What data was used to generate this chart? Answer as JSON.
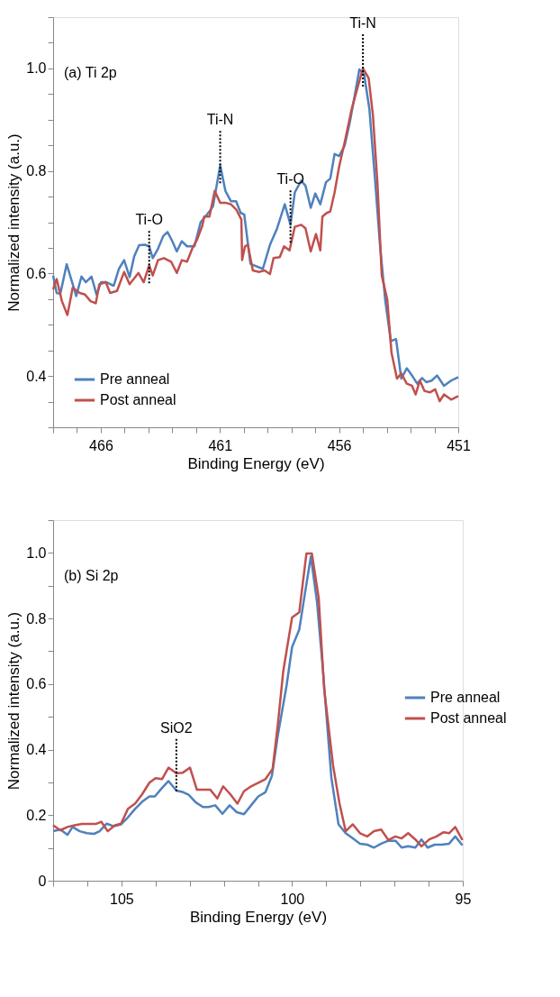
{
  "chart_data": [
    {
      "type": "line",
      "title": "(a) Ti 2p",
      "xlabel": "Binding Energy (eV)",
      "ylabel": "Normalized intensity (a.u.)",
      "xlim": [
        468,
        451
      ],
      "ylim": [
        0.3,
        1.1
      ],
      "xticks": [
        {
          "value": 468,
          "label": null
        },
        {
          "value": 467,
          "label": null
        },
        466,
        {
          "value": 465,
          "label": null
        },
        {
          "value": 464,
          "label": null
        },
        {
          "value": 463,
          "label": null
        },
        {
          "value": 462,
          "label": null
        },
        461,
        {
          "value": 460,
          "label": null
        },
        {
          "value": 459,
          "label": null
        },
        {
          "value": 458,
          "label": null
        },
        {
          "value": 457,
          "label": null
        },
        456,
        {
          "value": 455,
          "label": null
        },
        {
          "value": 454,
          "label": null
        },
        {
          "value": 453,
          "label": null
        },
        {
          "value": 452,
          "label": null
        },
        451
      ],
      "yticks": [
        {
          "value": 0.3,
          "label": null
        },
        {
          "value": 0.35,
          "label": null
        },
        0.4,
        {
          "value": 0.45,
          "label": null
        },
        {
          "value": 0.5,
          "label": null
        },
        {
          "value": 0.55,
          "label": null
        },
        0.6,
        {
          "value": 0.65,
          "label": null
        },
        {
          "value": 0.7,
          "label": null
        },
        {
          "value": 0.75,
          "label": null
        },
        0.8,
        {
          "value": 0.85,
          "label": null
        },
        {
          "value": 0.9,
          "label": null
        },
        {
          "value": 0.95,
          "label": null
        },
        {
          "value": 1.0,
          "label": "1.0"
        },
        {
          "value": 1.05,
          "label": null
        },
        {
          "value": 1.1,
          "label": null
        }
      ],
      "grid": false,
      "legend": "bottom left",
      "marker": "none",
      "line_style": "solid",
      "annotations": [
        {
          "text": "Ti-O",
          "x": 463.97,
          "y": 0.616
        },
        {
          "text": "Ti-N",
          "x": 460.99,
          "y": 0.811
        },
        {
          "text": "Ti-O",
          "x": 458.04,
          "y": 0.695
        },
        {
          "text": "Ti-N",
          "x": 455.0,
          "y": 1.0
        }
      ],
      "series": [
        {
          "name": "Pre anneal",
          "color": "#4f81bd",
          "x": [
            468.0,
            467.85,
            467.7,
            467.43,
            467.03,
            466.81,
            466.63,
            466.39,
            466.18,
            465.99,
            465.76,
            465.46,
            465.24,
            465.02,
            464.79,
            464.6,
            464.39,
            464.15,
            463.97,
            463.82,
            463.6,
            463.38,
            463.2,
            463.0,
            462.81,
            462.6,
            462.38,
            462.07,
            461.81,
            461.44,
            461.29,
            460.99,
            460.77,
            460.54,
            460.32,
            460.13,
            459.98,
            459.72,
            459.57,
            459.2,
            458.9,
            458.61,
            458.28,
            458.04,
            457.86,
            457.59,
            457.41,
            457.19,
            457.0,
            456.79,
            456.55,
            456.37,
            456.19,
            456.0,
            455.77,
            455.55,
            455.33,
            455.15,
            454.95,
            454.73,
            454.5,
            454.28,
            454.06,
            453.83,
            453.61,
            453.39,
            453.16,
            452.94,
            452.72,
            452.52,
            452.34,
            452.12,
            451.89,
            451.6,
            451.3,
            451.0
          ],
          "values": [
            0.596,
            0.562,
            0.56,
            0.618,
            0.556,
            0.594,
            0.583,
            0.594,
            0.559,
            0.583,
            0.583,
            0.576,
            0.609,
            0.626,
            0.593,
            0.633,
            0.655,
            0.656,
            0.653,
            0.63,
            0.648,
            0.673,
            0.681,
            0.663,
            0.643,
            0.663,
            0.653,
            0.653,
            0.7,
            0.721,
            0.731,
            0.811,
            0.761,
            0.741,
            0.741,
            0.718,
            0.715,
            0.619,
            0.616,
            0.609,
            0.656,
            0.687,
            0.735,
            0.695,
            0.758,
            0.781,
            0.771,
            0.728,
            0.756,
            0.735,
            0.778,
            0.785,
            0.833,
            0.829,
            0.849,
            0.895,
            0.951,
            0.998,
            0.988,
            0.921,
            0.788,
            0.653,
            0.546,
            0.468,
            0.472,
            0.395,
            0.415,
            0.401,
            0.385,
            0.396,
            0.388,
            0.391,
            0.401,
            0.381,
            0.391,
            0.398
          ]
        },
        {
          "name": "Post anneal",
          "color": "#c0504d",
          "x": [
            468.0,
            467.85,
            467.63,
            467.4,
            467.18,
            466.88,
            466.66,
            466.43,
            466.21,
            466.06,
            465.79,
            465.61,
            465.32,
            465.02,
            464.79,
            464.42,
            464.2,
            463.97,
            463.82,
            463.6,
            463.35,
            463.05,
            462.81,
            462.6,
            462.38,
            462.15,
            461.96,
            461.74,
            461.66,
            461.44,
            461.22,
            460.99,
            460.77,
            460.54,
            460.32,
            460.1,
            460.07,
            459.95,
            459.83,
            459.62,
            459.35,
            459.13,
            458.9,
            458.75,
            458.49,
            458.31,
            458.08,
            457.86,
            457.59,
            457.41,
            457.19,
            456.97,
            456.79,
            456.7,
            456.52,
            456.37,
            456.19,
            456.0,
            455.77,
            455.47,
            455.21,
            455.0,
            454.76,
            454.58,
            454.39,
            454.21,
            453.98,
            453.8,
            453.57,
            453.39,
            453.16,
            452.94,
            452.79,
            452.61,
            452.42,
            452.19,
            451.97,
            451.78,
            451.6,
            451.3,
            451.0
          ],
          "values": [
            0.569,
            0.589,
            0.546,
            0.519,
            0.572,
            0.562,
            0.559,
            0.546,
            0.542,
            0.579,
            0.583,
            0.562,
            0.566,
            0.603,
            0.579,
            0.601,
            0.583,
            0.616,
            0.596,
            0.626,
            0.63,
            0.623,
            0.601,
            0.626,
            0.623,
            0.65,
            0.666,
            0.693,
            0.711,
            0.711,
            0.761,
            0.738,
            0.738,
            0.735,
            0.725,
            0.705,
            0.626,
            0.653,
            0.656,
            0.606,
            0.603,
            0.606,
            0.599,
            0.63,
            0.632,
            0.653,
            0.645,
            0.691,
            0.695,
            0.688,
            0.643,
            0.677,
            0.645,
            0.711,
            0.718,
            0.721,
            0.758,
            0.808,
            0.855,
            0.921,
            0.965,
            1.0,
            0.981,
            0.908,
            0.775,
            0.596,
            0.549,
            0.445,
            0.395,
            0.405,
            0.385,
            0.381,
            0.364,
            0.391,
            0.371,
            0.368,
            0.374,
            0.351,
            0.364,
            0.354,
            0.361
          ]
        }
      ]
    },
    {
      "type": "line",
      "title": "(b) Si 2p",
      "xlabel": "Binding Energy (eV)",
      "ylabel": "Normalized intensity (a.u.)",
      "xlim": [
        107,
        95
      ],
      "ylim": [
        0,
        1.1
      ],
      "xticks": [
        {
          "value": 107,
          "label": null
        },
        {
          "value": 106,
          "label": null
        },
        105,
        {
          "value": 104,
          "label": null
        },
        {
          "value": 103,
          "label": null
        },
        {
          "value": 102,
          "label": null
        },
        {
          "value": 101,
          "label": null
        },
        100,
        {
          "value": 99,
          "label": null
        },
        {
          "value": 98,
          "label": null
        },
        {
          "value": 97,
          "label": null
        },
        {
          "value": 96,
          "label": null
        },
        95
      ],
      "yticks": [
        0,
        {
          "value": 0.1,
          "label": null
        },
        0.2,
        {
          "value": 0.3,
          "label": null
        },
        0.4,
        {
          "value": 0.5,
          "label": null
        },
        0.6,
        {
          "value": 0.7,
          "label": null
        },
        0.8,
        {
          "value": 0.9,
          "label": null
        },
        {
          "value": 1.0,
          "label": "1.0"
        },
        {
          "value": 1.1,
          "label": null
        }
      ],
      "grid": false,
      "legend": "right",
      "marker": "none",
      "line_style": "solid",
      "annotations": [
        {
          "text": "SiO2",
          "x": 103.39,
          "y": 0.328
        }
      ],
      "series": [
        {
          "name": "Pre anneal",
          "color": "#4f81bd",
          "x": [
            107.0,
            106.79,
            106.58,
            106.43,
            106.22,
            106.01,
            105.8,
            105.64,
            105.43,
            105.22,
            105.01,
            104.81,
            104.6,
            104.39,
            104.18,
            104.02,
            103.81,
            103.62,
            103.39,
            103.19,
            103.03,
            102.82,
            102.61,
            102.45,
            102.25,
            102.04,
            101.83,
            101.62,
            101.41,
            101.2,
            100.99,
            100.78,
            100.59,
            100.42,
            100.16,
            100.0,
            99.79,
            99.63,
            99.45,
            99.27,
            99.11,
            98.85,
            98.64,
            98.43,
            98.22,
            98.01,
            97.8,
            97.6,
            97.39,
            97.18,
            96.97,
            96.79,
            96.6,
            96.39,
            96.21,
            96.03,
            95.82,
            95.61,
            95.4,
            95.22,
            95.01
          ],
          "values": [
            0.151,
            0.156,
            0.14,
            0.164,
            0.151,
            0.145,
            0.143,
            0.151,
            0.174,
            0.166,
            0.172,
            0.193,
            0.219,
            0.241,
            0.257,
            0.257,
            0.283,
            0.304,
            0.275,
            0.27,
            0.262,
            0.239,
            0.225,
            0.225,
            0.23,
            0.204,
            0.23,
            0.209,
            0.203,
            0.23,
            0.257,
            0.27,
            0.32,
            0.442,
            0.596,
            0.713,
            0.766,
            0.872,
            0.989,
            0.851,
            0.66,
            0.315,
            0.172,
            0.145,
            0.129,
            0.113,
            0.11,
            0.101,
            0.113,
            0.122,
            0.122,
            0.101,
            0.105,
            0.101,
            0.126,
            0.101,
            0.11,
            0.11,
            0.113,
            0.135,
            0.108
          ]
        },
        {
          "name": "Post anneal",
          "color": "#c0504d",
          "x": [
            107.0,
            106.79,
            106.58,
            106.37,
            106.16,
            105.96,
            105.75,
            105.59,
            105.4,
            105.19,
            105.01,
            104.81,
            104.6,
            104.39,
            104.18,
            104.0,
            103.81,
            103.62,
            103.39,
            103.21,
            102.99,
            102.79,
            102.61,
            102.4,
            102.19,
            102.02,
            101.81,
            101.6,
            101.41,
            101.2,
            100.99,
            100.78,
            100.57,
            100.42,
            100.26,
            100.16,
            100.0,
            99.79,
            99.58,
            99.42,
            99.22,
            99.06,
            98.8,
            98.61,
            98.43,
            98.22,
            98.01,
            97.8,
            97.6,
            97.39,
            97.18,
            96.97,
            96.79,
            96.6,
            96.39,
            96.21,
            95.98,
            95.77,
            95.56,
            95.4,
            95.22,
            95.01
          ],
          "values": [
            0.169,
            0.154,
            0.164,
            0.169,
            0.173,
            0.173,
            0.173,
            0.18,
            0.151,
            0.169,
            0.174,
            0.219,
            0.235,
            0.264,
            0.299,
            0.313,
            0.31,
            0.345,
            0.328,
            0.329,
            0.345,
            0.278,
            0.278,
            0.278,
            0.251,
            0.288,
            0.264,
            0.235,
            0.273,
            0.288,
            0.299,
            0.31,
            0.341,
            0.474,
            0.638,
            0.702,
            0.803,
            0.819,
            0.998,
            0.998,
            0.862,
            0.585,
            0.352,
            0.235,
            0.151,
            0.172,
            0.145,
            0.135,
            0.151,
            0.156,
            0.124,
            0.135,
            0.129,
            0.145,
            0.126,
            0.105,
            0.126,
            0.135,
            0.148,
            0.145,
            0.164,
            0.124
          ]
        }
      ]
    }
  ]
}
